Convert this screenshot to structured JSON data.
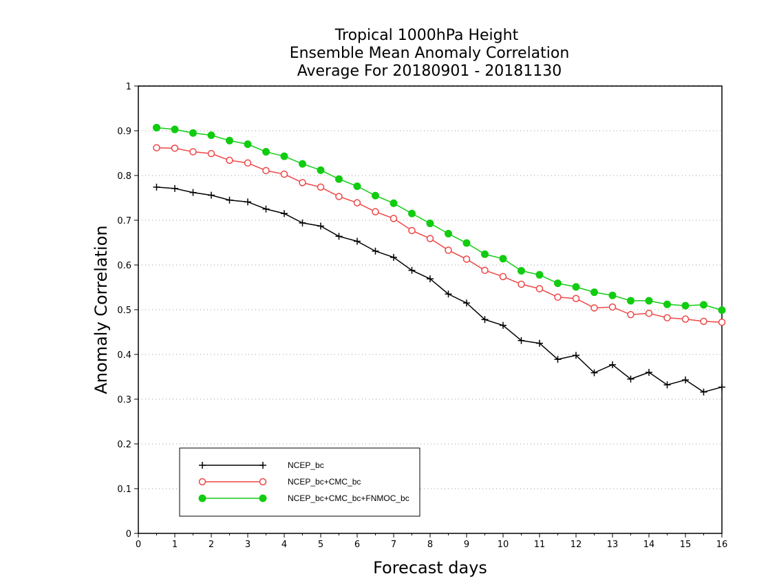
{
  "chart_data": {
    "type": "line",
    "title": [
      "Tropical 1000hPa Height",
      "Ensemble Mean Anomaly Correlation",
      "Average For 20180901 - 20181130"
    ],
    "xlabel": "Forecast days",
    "ylabel": "Anomaly Correlation",
    "xlim": [
      0,
      16
    ],
    "ylim": [
      0,
      1
    ],
    "xticks": [
      0,
      1,
      2,
      3,
      4,
      5,
      6,
      7,
      8,
      9,
      10,
      11,
      12,
      13,
      14,
      15,
      16
    ],
    "yticks": [
      0,
      0.1,
      0.2,
      0.3,
      0.4,
      0.5,
      0.6,
      0.7,
      0.8,
      0.9,
      1
    ],
    "ytick_labels": [
      "0",
      "0.1",
      "0.2",
      "0.3",
      "0.4",
      "0.5",
      "0.6",
      "0.7",
      "0.8",
      "0.9",
      "1"
    ],
    "grid": "horizontal dotted",
    "legend_position": "bottom-left",
    "x": [
      0.5,
      1,
      1.5,
      2,
      2.5,
      3,
      3.5,
      4,
      4.5,
      5,
      5.5,
      6,
      6.5,
      7,
      7.5,
      8,
      8.5,
      9,
      9.5,
      10,
      10.5,
      11,
      11.5,
      12,
      12.5,
      13,
      13.5,
      14,
      14.5,
      15,
      15.5,
      16
    ],
    "series": [
      {
        "name": "NCEP_bc",
        "color": "#000000",
        "marker": "plus",
        "values": [
          0.774,
          0.771,
          0.762,
          0.756,
          0.745,
          0.741,
          0.725,
          0.715,
          0.694,
          0.687,
          0.664,
          0.653,
          0.631,
          0.617,
          0.588,
          0.569,
          0.535,
          0.515,
          0.478,
          0.465,
          0.431,
          0.425,
          0.389,
          0.398,
          0.359,
          0.377,
          0.345,
          0.36,
          0.332,
          0.343,
          0.316,
          0.327
        ]
      },
      {
        "name": "NCEP_bc+CMC_bc",
        "color": "#ee4444",
        "marker": "open-circle",
        "values": [
          0.862,
          0.861,
          0.853,
          0.849,
          0.834,
          0.828,
          0.811,
          0.803,
          0.784,
          0.774,
          0.753,
          0.739,
          0.719,
          0.704,
          0.677,
          0.659,
          0.633,
          0.613,
          0.588,
          0.574,
          0.557,
          0.547,
          0.528,
          0.525,
          0.504,
          0.506,
          0.489,
          0.492,
          0.482,
          0.479,
          0.474,
          0.472
        ]
      },
      {
        "name": "NCEP_bc+CMC_bc+FNMOC_bc",
        "color": "#11cc11",
        "marker": "filled-circle",
        "values": [
          0.907,
          0.903,
          0.895,
          0.89,
          0.878,
          0.87,
          0.853,
          0.843,
          0.826,
          0.812,
          0.792,
          0.776,
          0.755,
          0.738,
          0.715,
          0.693,
          0.67,
          0.649,
          0.624,
          0.614,
          0.587,
          0.578,
          0.559,
          0.551,
          0.539,
          0.532,
          0.52,
          0.52,
          0.512,
          0.509,
          0.511,
          0.499
        ]
      }
    ]
  }
}
